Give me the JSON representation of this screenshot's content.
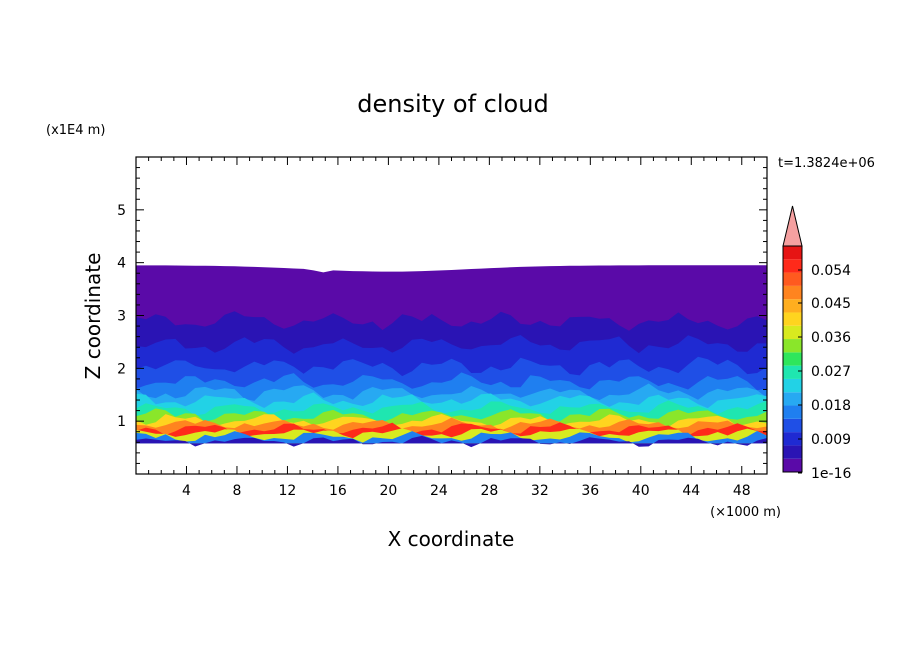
{
  "chart_data": {
    "type": "heatmap",
    "title": "density of cloud",
    "xlabel": "X coordinate",
    "ylabel": "Z coordinate",
    "x_unit": "(×1000 m)",
    "y_unit": "(x1E4 m)",
    "time_label": "t=1.3824e+06",
    "xlim": [
      0,
      50
    ],
    "ylim": [
      0,
      6
    ],
    "x_ticks": [
      "4",
      "8",
      "12",
      "16",
      "20",
      "24",
      "28",
      "32",
      "36",
      "40",
      "44",
      "48"
    ],
    "y_ticks": [
      "1",
      "2",
      "3",
      "4",
      "5"
    ],
    "colorbar": {
      "labels": [
        "0.054",
        "0.045",
        "0.036",
        "0.027",
        "0.018",
        "0.009",
        "1e-16"
      ],
      "colors": [
        "#5a0aa8",
        "#2a14b4",
        "#1f2ad2",
        "#1f4fe6",
        "#1f7ff0",
        "#27a9f2",
        "#22d2e6",
        "#1fe6b0",
        "#2ee65c",
        "#8ae62a",
        "#d8ea1f",
        "#ffd41f",
        "#ffae1f",
        "#ff841f",
        "#ff5a1f",
        "#ff2a1a",
        "#e61414"
      ],
      "over_color": "#f5a0a0"
    },
    "profile": [
      {
        "z": 0.62,
        "level": 1
      },
      {
        "z": 0.7,
        "level": 4
      },
      {
        "z": 0.78,
        "level": 10
      },
      {
        "z": 0.86,
        "level": 15
      },
      {
        "z": 0.94,
        "level": 13
      },
      {
        "z": 1.02,
        "level": 11
      },
      {
        "z": 1.12,
        "level": 9
      },
      {
        "z": 1.25,
        "level": 7
      },
      {
        "z": 1.4,
        "level": 6
      },
      {
        "z": 1.55,
        "level": 5
      },
      {
        "z": 1.75,
        "level": 4
      },
      {
        "z": 2.05,
        "level": 3
      },
      {
        "z": 2.45,
        "level": 2
      },
      {
        "z": 2.9,
        "level": 1
      },
      {
        "z": 3.95,
        "level": 0
      }
    ]
  }
}
